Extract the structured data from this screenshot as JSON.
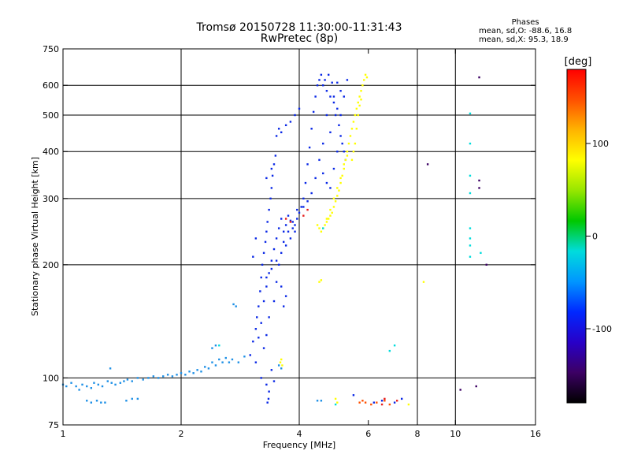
{
  "header": {
    "title_line1": "Tromsø 20150728 11:30:00-11:31:43",
    "title_line2": "RwPretec (8p)"
  },
  "phases": {
    "title": "Phases",
    "line1": "mean, sd,O: -88.6, 16.8",
    "line2": "mean, sd,X:  95.3, 18.9"
  },
  "chart_data": {
    "type": "scatter",
    "title": "Tromsø 20150728 11:30:00-11:31:43",
    "subtitle": "RwPretec (8p)",
    "xlabel": "Frequency [MHz]",
    "ylabel": "Stationary phase Virtual Height [km]",
    "xscale": "log",
    "yscale": "log",
    "xlim": [
      1,
      16
    ],
    "ylim": [
      75,
      750
    ],
    "x_ticks": [
      1,
      2,
      4,
      6,
      8,
      10,
      16
    ],
    "y_ticks": [
      75,
      100,
      200,
      300,
      400,
      500,
      600,
      750
    ],
    "grid_x": [
      2,
      4,
      8,
      10
    ],
    "grid_y": [
      100,
      200,
      300,
      400,
      500,
      600
    ],
    "colorbar": {
      "label": "[deg]",
      "range": [
        -180,
        180
      ],
      "ticks": [
        -100,
        0,
        100
      ],
      "colors": [
        "#000000",
        "#3c0064",
        "#2800c8",
        "#0028ff",
        "#0096ff",
        "#00dcdc",
        "#00c800",
        "#96e600",
        "#ffff00",
        "#ffb400",
        "#ff5000",
        "#ff0000"
      ]
    },
    "series": [
      {
        "color": "#1e90e6",
        "points": [
          [
            1.0,
            96
          ],
          [
            1.02,
            95
          ],
          [
            1.05,
            97
          ],
          [
            1.08,
            95
          ],
          [
            1.1,
            93
          ],
          [
            1.12,
            96
          ],
          [
            1.15,
            95
          ],
          [
            1.18,
            94
          ],
          [
            1.2,
            97
          ],
          [
            1.23,
            96
          ],
          [
            1.26,
            95
          ],
          [
            1.3,
            98
          ],
          [
            1.33,
            97
          ],
          [
            1.36,
            96
          ],
          [
            1.4,
            97
          ],
          [
            1.43,
            98
          ],
          [
            1.46,
            99
          ],
          [
            1.5,
            98
          ],
          [
            1.55,
            100
          ],
          [
            1.6,
            99
          ],
          [
            1.65,
            100
          ],
          [
            1.7,
            101
          ],
          [
            1.75,
            100
          ],
          [
            1.8,
            101
          ],
          [
            1.85,
            102
          ],
          [
            1.9,
            101
          ],
          [
            1.95,
            102
          ],
          [
            2.0,
            103
          ],
          [
            2.05,
            102
          ],
          [
            2.1,
            104
          ],
          [
            2.15,
            103
          ],
          [
            2.2,
            105
          ],
          [
            2.25,
            104
          ],
          [
            2.3,
            107
          ],
          [
            2.35,
            106
          ],
          [
            2.4,
            110
          ],
          [
            2.45,
            108
          ],
          [
            2.5,
            112
          ],
          [
            2.55,
            110
          ],
          [
            2.6,
            113
          ],
          [
            2.65,
            110
          ],
          [
            2.7,
            112
          ],
          [
            2.8,
            110
          ],
          [
            2.9,
            114
          ],
          [
            2.4,
            120
          ],
          [
            2.45,
            122
          ],
          [
            2.72,
            157
          ],
          [
            2.76,
            155
          ],
          [
            1.15,
            87
          ],
          [
            1.18,
            86
          ],
          [
            1.22,
            87
          ],
          [
            1.25,
            86
          ],
          [
            1.28,
            86
          ],
          [
            1.32,
            106
          ],
          [
            1.45,
            87
          ],
          [
            1.5,
            88
          ],
          [
            1.55,
            88
          ],
          [
            3.55,
            108
          ],
          [
            3.6,
            106
          ],
          [
            4.45,
            87
          ],
          [
            4.55,
            87
          ]
        ]
      },
      {
        "color": "#0a28e6",
        "points": [
          [
            3.0,
            115
          ],
          [
            3.05,
            125
          ],
          [
            3.1,
            135
          ],
          [
            3.12,
            145
          ],
          [
            3.15,
            155
          ],
          [
            3.18,
            170
          ],
          [
            3.2,
            185
          ],
          [
            3.22,
            200
          ],
          [
            3.25,
            215
          ],
          [
            3.28,
            230
          ],
          [
            3.3,
            245
          ],
          [
            3.32,
            260
          ],
          [
            3.35,
            280
          ],
          [
            3.38,
            300
          ],
          [
            3.4,
            320
          ],
          [
            3.42,
            345
          ],
          [
            3.45,
            370
          ],
          [
            3.48,
            390
          ],
          [
            3.15,
            128
          ],
          [
            3.2,
            140
          ],
          [
            3.25,
            160
          ],
          [
            3.3,
            175
          ],
          [
            3.35,
            190
          ],
          [
            3.4,
            205
          ],
          [
            3.45,
            220
          ],
          [
            3.5,
            235
          ],
          [
            3.55,
            250
          ],
          [
            3.6,
            265
          ],
          [
            3.65,
            245
          ],
          [
            3.7,
            255
          ],
          [
            3.75,
            270
          ],
          [
            3.8,
            262
          ],
          [
            3.85,
            250
          ],
          [
            3.9,
            255
          ],
          [
            3.95,
            265
          ],
          [
            4.0,
            275
          ],
          [
            4.05,
            285
          ],
          [
            4.1,
            300
          ],
          [
            4.15,
            330
          ],
          [
            4.2,
            370
          ],
          [
            4.25,
            410
          ],
          [
            4.3,
            460
          ],
          [
            4.35,
            510
          ],
          [
            4.4,
            560
          ],
          [
            4.45,
            600
          ],
          [
            4.5,
            620
          ],
          [
            4.55,
            640
          ],
          [
            4.6,
            600
          ],
          [
            4.65,
            620
          ],
          [
            4.7,
            580
          ],
          [
            4.75,
            640
          ],
          [
            4.8,
            560
          ],
          [
            4.85,
            610
          ],
          [
            4.9,
            540
          ],
          [
            4.95,
            500
          ],
          [
            5.0,
            520
          ],
          [
            5.05,
            470
          ],
          [
            5.1,
            440
          ],
          [
            5.15,
            420
          ],
          [
            5.2,
            400
          ],
          [
            5.25,
            380
          ],
          [
            4.6,
            350
          ],
          [
            4.7,
            330
          ],
          [
            4.8,
            320
          ],
          [
            4.9,
            360
          ],
          [
            5.0,
            400
          ],
          [
            5.1,
            500
          ],
          [
            5.2,
            560
          ],
          [
            5.3,
            620
          ],
          [
            5.0,
            610
          ],
          [
            5.1,
            580
          ],
          [
            4.9,
            560
          ],
          [
            4.7,
            500
          ],
          [
            4.8,
            450
          ],
          [
            4.6,
            420
          ],
          [
            4.5,
            380
          ],
          [
            4.4,
            340
          ],
          [
            4.3,
            310
          ],
          [
            4.2,
            295
          ],
          [
            4.1,
            285
          ],
          [
            3.9,
            245
          ],
          [
            3.8,
            235
          ],
          [
            3.7,
            225
          ],
          [
            3.6,
            215
          ],
          [
            3.5,
            205
          ],
          [
            3.4,
            195
          ],
          [
            3.3,
            185
          ],
          [
            3.6,
            175
          ],
          [
            3.7,
            165
          ],
          [
            3.65,
            155
          ],
          [
            3.1,
            110
          ],
          [
            3.2,
            100
          ],
          [
            3.3,
            96
          ],
          [
            3.35,
            92
          ],
          [
            3.4,
            105
          ],
          [
            3.45,
            98
          ],
          [
            3.25,
            120
          ],
          [
            3.3,
            130
          ],
          [
            3.35,
            145
          ],
          [
            3.45,
            160
          ],
          [
            3.5,
            180
          ],
          [
            3.55,
            200
          ],
          [
            3.65,
            230
          ],
          [
            3.75,
            245
          ],
          [
            3.85,
            260
          ],
          [
            3.95,
            280
          ],
          [
            3.5,
            440
          ],
          [
            3.55,
            460
          ],
          [
            3.6,
            450
          ],
          [
            3.7,
            470
          ],
          [
            3.8,
            480
          ],
          [
            3.9,
            500
          ],
          [
            4.0,
            520
          ],
          [
            3.32,
            86
          ],
          [
            3.34,
            88
          ],
          [
            5.5,
            90
          ],
          [
            6.2,
            86
          ],
          [
            6.5,
            87
          ],
          [
            7.0,
            86
          ],
          [
            7.3,
            88
          ],
          [
            3.05,
            210
          ],
          [
            3.1,
            235
          ],
          [
            3.3,
            340
          ],
          [
            3.4,
            360
          ]
        ]
      },
      {
        "color": "#ffff00",
        "points": [
          [
            4.55,
            245
          ],
          [
            4.6,
            250
          ],
          [
            4.65,
            255
          ],
          [
            4.7,
            260
          ],
          [
            4.75,
            265
          ],
          [
            4.8,
            270
          ],
          [
            4.85,
            275
          ],
          [
            4.9,
            285
          ],
          [
            4.95,
            295
          ],
          [
            5.0,
            305
          ],
          [
            5.05,
            315
          ],
          [
            5.1,
            330
          ],
          [
            5.15,
            345
          ],
          [
            5.2,
            360
          ],
          [
            5.25,
            380
          ],
          [
            5.3,
            400
          ],
          [
            5.35,
            420
          ],
          [
            5.4,
            440
          ],
          [
            5.45,
            460
          ],
          [
            5.5,
            480
          ],
          [
            5.55,
            500
          ],
          [
            5.6,
            520
          ],
          [
            5.65,
            540
          ],
          [
            5.7,
            560
          ],
          [
            5.75,
            580
          ],
          [
            5.8,
            600
          ],
          [
            5.85,
            620
          ],
          [
            5.9,
            640
          ],
          [
            5.95,
            630
          ],
          [
            5.5,
            400
          ],
          [
            5.45,
            380
          ],
          [
            5.55,
            420
          ],
          [
            5.6,
            460
          ],
          [
            5.65,
            500
          ],
          [
            5.7,
            530
          ],
          [
            5.75,
            550
          ],
          [
            4.7,
            265
          ],
          [
            4.8,
            280
          ],
          [
            4.9,
            300
          ],
          [
            5.0,
            320
          ],
          [
            5.1,
            340
          ],
          [
            5.2,
            370
          ],
          [
            5.3,
            390
          ],
          [
            4.5,
            250
          ],
          [
            4.45,
            255
          ],
          [
            3.58,
            110
          ],
          [
            3.6,
            112
          ],
          [
            3.62,
            108
          ],
          [
            4.5,
            180
          ],
          [
            4.55,
            182
          ],
          [
            4.95,
            88
          ],
          [
            5.0,
            86
          ],
          [
            8.3,
            180
          ],
          [
            7.6,
            85
          ]
        ]
      },
      {
        "color": "#ff5000",
        "points": [
          [
            5.7,
            86
          ],
          [
            5.8,
            87
          ],
          [
            5.9,
            86
          ],
          [
            6.1,
            85
          ],
          [
            6.3,
            86
          ],
          [
            6.6,
            87
          ],
          [
            6.8,
            85
          ]
        ]
      },
      {
        "color": "#00dcdc",
        "points": [
          [
            10.9,
            505
          ],
          [
            10.9,
            420
          ],
          [
            10.9,
            345
          ],
          [
            10.9,
            310
          ],
          [
            10.9,
            250
          ],
          [
            10.9,
            235
          ],
          [
            10.9,
            225
          ],
          [
            10.9,
            210
          ],
          [
            11.6,
            215
          ],
          [
            7.0,
            122
          ],
          [
            6.8,
            118
          ],
          [
            4.6,
            250
          ],
          [
            2.5,
            122
          ],
          [
            4.95,
            85
          ]
        ]
      },
      {
        "color": "#3c0064",
        "points": [
          [
            11.5,
            630
          ],
          [
            11.5,
            335
          ],
          [
            11.5,
            320
          ],
          [
            12.0,
            200
          ],
          [
            8.5,
            370
          ],
          [
            10.3,
            93
          ],
          [
            11.3,
            95
          ]
        ]
      },
      {
        "color": "#e61e1e",
        "points": [
          [
            6.6,
            88
          ],
          [
            6.5,
            85
          ],
          [
            7.1,
            87
          ],
          [
            4.1,
            270
          ],
          [
            4.2,
            280
          ],
          [
            3.7,
            265
          ],
          [
            3.8,
            260
          ]
        ]
      }
    ]
  }
}
